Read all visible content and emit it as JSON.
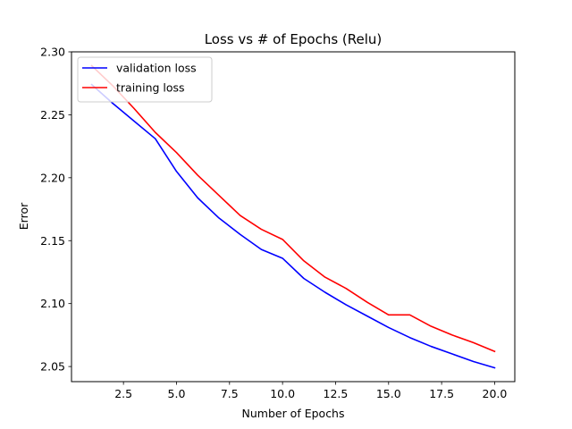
{
  "chart_data": {
    "type": "line",
    "title": "Loss vs # of Epochs (Relu)",
    "xlabel": "Number of Epochs",
    "ylabel": "Error",
    "xlim": [
      0.05,
      20.95
    ],
    "ylim": [
      2.038,
      2.3
    ],
    "xticks": [
      2.5,
      5.0,
      7.5,
      10.0,
      12.5,
      15.0,
      17.5,
      20.0
    ],
    "xtick_labels": [
      "2.5",
      "5.0",
      "7.5",
      "10.0",
      "12.5",
      "15.0",
      "17.5",
      "20.0"
    ],
    "yticks": [
      2.05,
      2.1,
      2.15,
      2.2,
      2.25,
      2.3
    ],
    "ytick_labels": [
      "2.05",
      "2.10",
      "2.15",
      "2.20",
      "2.25",
      "2.30"
    ],
    "grid": false,
    "legend_position": "upper-left",
    "x": [
      1,
      2,
      3,
      4,
      5,
      6,
      7,
      8,
      9,
      10,
      11,
      12,
      13,
      14,
      15,
      16,
      17,
      18,
      19,
      20
    ],
    "series": [
      {
        "name": "validation loss",
        "color": "#0000ff",
        "values": [
          2.274,
          2.259,
          2.245,
          2.231,
          2.205,
          2.184,
          2.168,
          2.155,
          2.143,
          2.136,
          2.12,
          2.109,
          2.099,
          2.09,
          2.081,
          2.073,
          2.066,
          2.06,
          2.054,
          2.049
        ]
      },
      {
        "name": "training loss",
        "color": "#ff0000",
        "values": [
          2.289,
          2.273,
          2.255,
          2.236,
          2.22,
          2.202,
          2.186,
          2.17,
          2.159,
          2.151,
          2.134,
          2.121,
          2.112,
          2.101,
          2.091,
          2.091,
          2.082,
          2.075,
          2.069,
          2.062
        ]
      }
    ]
  }
}
